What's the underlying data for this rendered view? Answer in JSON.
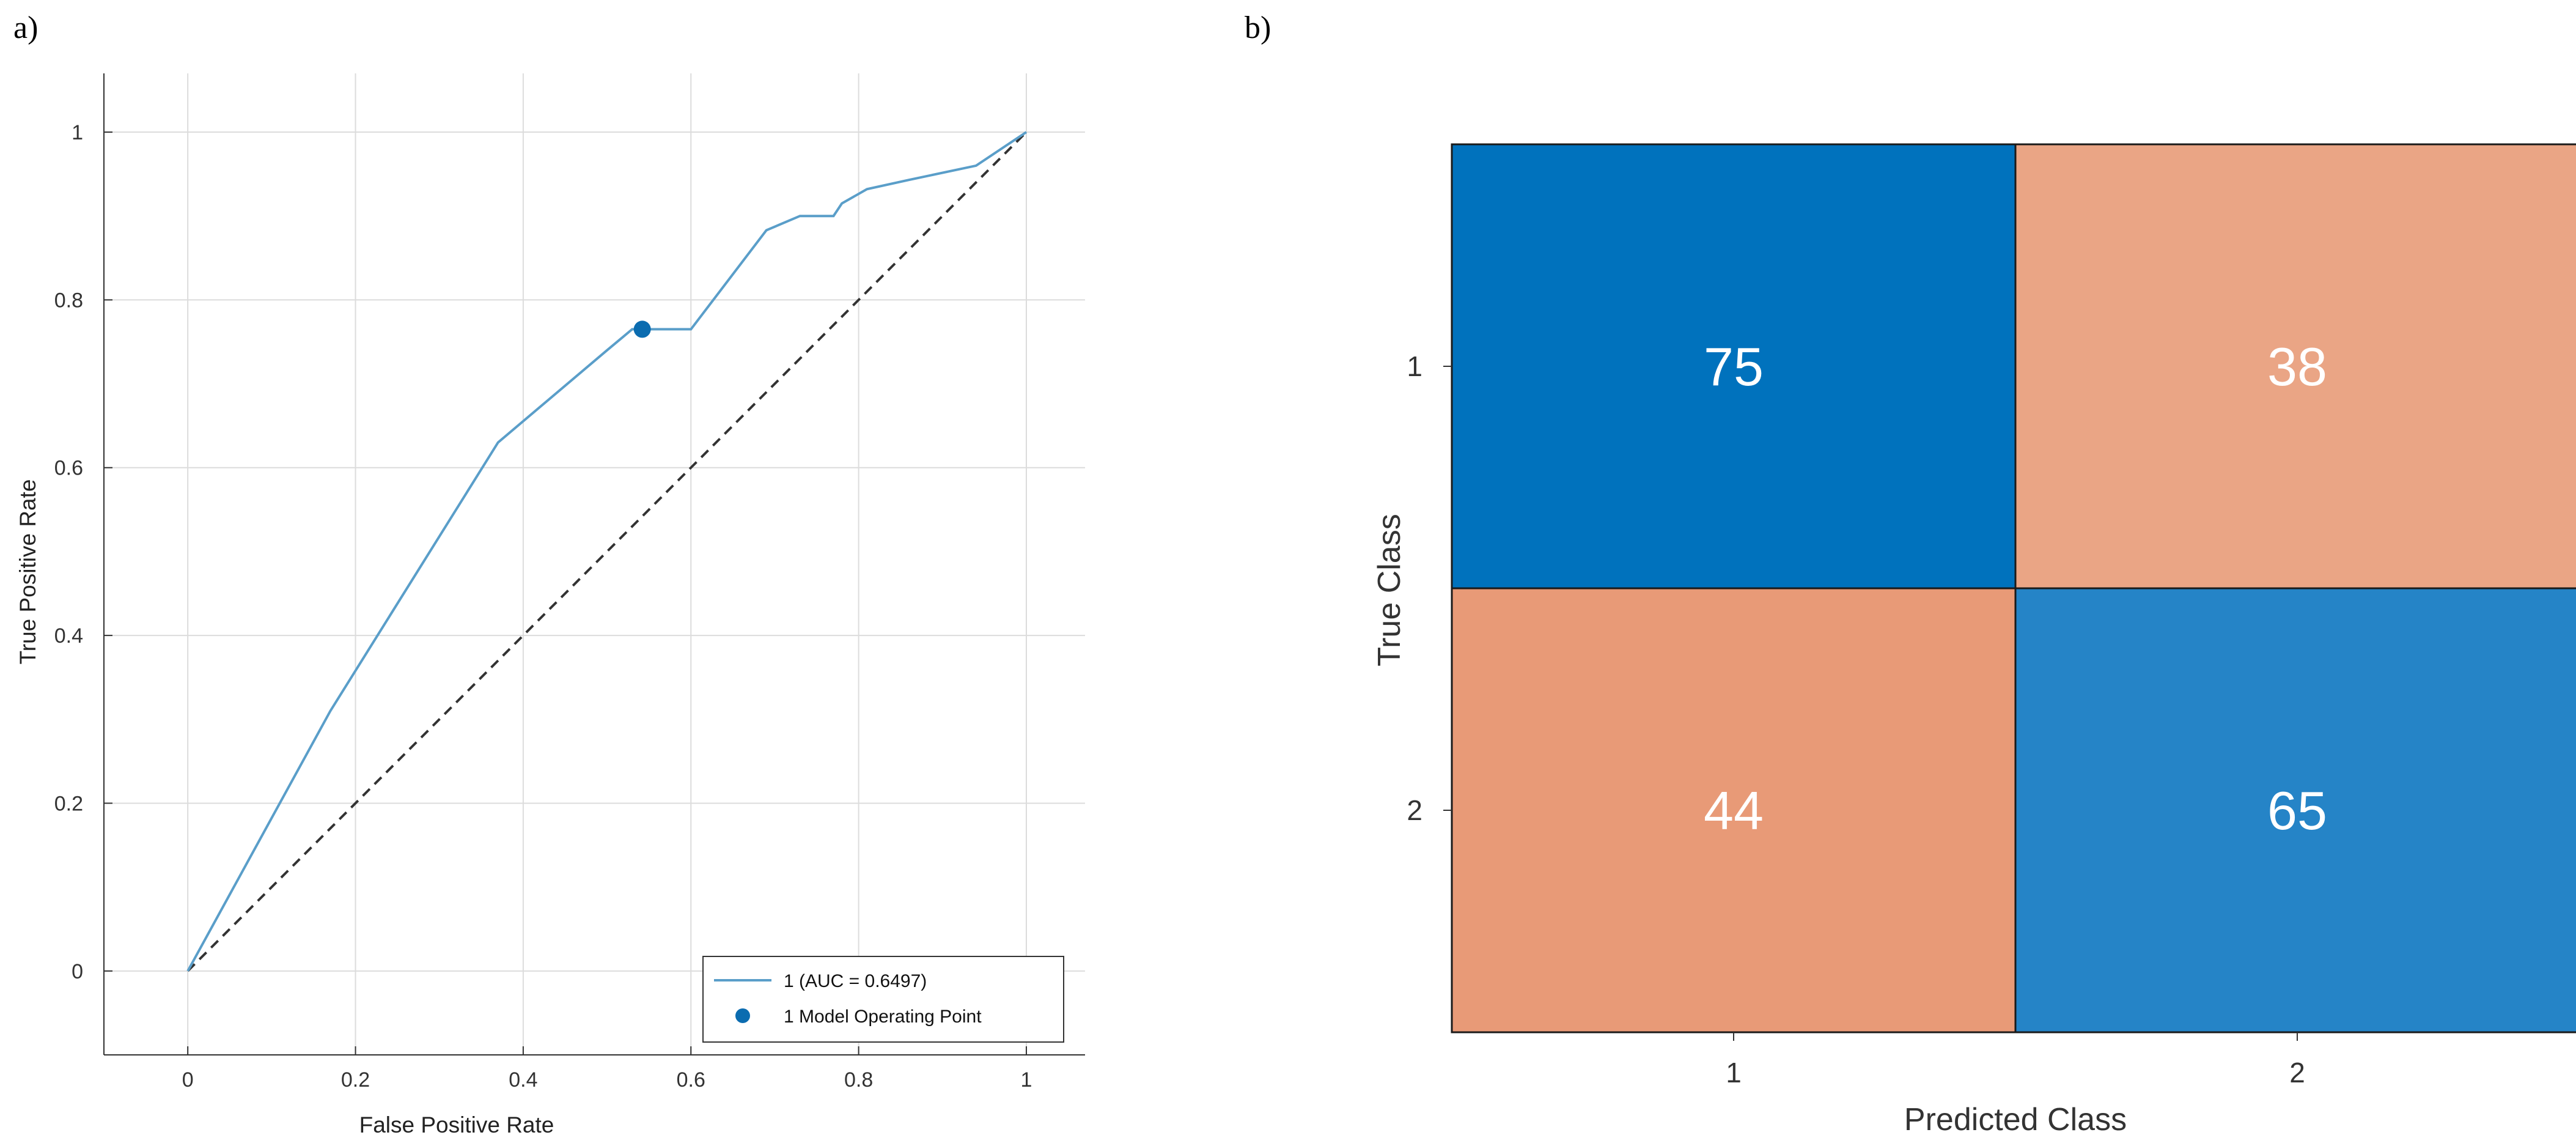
{
  "panels": {
    "a_label": "a)",
    "b_label": "b)"
  },
  "chart_data": [
    {
      "type": "line",
      "title": "",
      "xlabel": "False Positive Rate",
      "ylabel": "True Positive Rate",
      "xlim": [
        -0.1,
        1.07
      ],
      "ylim": [
        -0.1,
        1.07
      ],
      "xticks": [
        0,
        0.2,
        0.4,
        0.6,
        0.8,
        1
      ],
      "yticks": [
        0,
        0.2,
        0.4,
        0.6,
        0.8,
        1
      ],
      "xtick_labels": [
        "0",
        "0.2",
        "0.4",
        "0.6",
        "0.8",
        "1"
      ],
      "ytick_labels": [
        "0",
        "0.2",
        "0.4",
        "0.6",
        "0.8",
        "1"
      ],
      "grid": true,
      "legend_position": "bottom-right",
      "series": [
        {
          "name": "1 (AUC = 0.6497)",
          "color": "#5a9ec9",
          "x": [
            0,
            0.17,
            0.37,
            0.5,
            0.53,
            0.6,
            0.69,
            0.73,
            0.77,
            0.78,
            0.81,
            0.86,
            0.94,
            1
          ],
          "y": [
            0,
            0.31,
            0.63,
            0.74,
            0.765,
            0.765,
            0.883,
            0.9,
            0.9,
            0.915,
            0.932,
            0.943,
            0.96,
            1
          ]
        }
      ],
      "operating_point": {
        "name": "1 Model Operating Point",
        "x": 0.542,
        "y": 0.765,
        "color": "#0b6cb0"
      },
      "reference_line": {
        "x": [
          0,
          1
        ],
        "y": [
          0,
          1
        ],
        "color": "#333333"
      }
    },
    {
      "type": "heatmap",
      "title": "",
      "xlabel": "Predicted Class",
      "ylabel": "True Class",
      "x_categories": [
        "1",
        "2"
      ],
      "y_categories": [
        "1",
        "2"
      ],
      "values": [
        [
          75,
          38
        ],
        [
          44,
          65
        ]
      ],
      "cell_colors": [
        [
          "#0072bd",
          "#eaa585"
        ],
        [
          "#e89a77",
          "#2584c7"
        ]
      ]
    }
  ]
}
